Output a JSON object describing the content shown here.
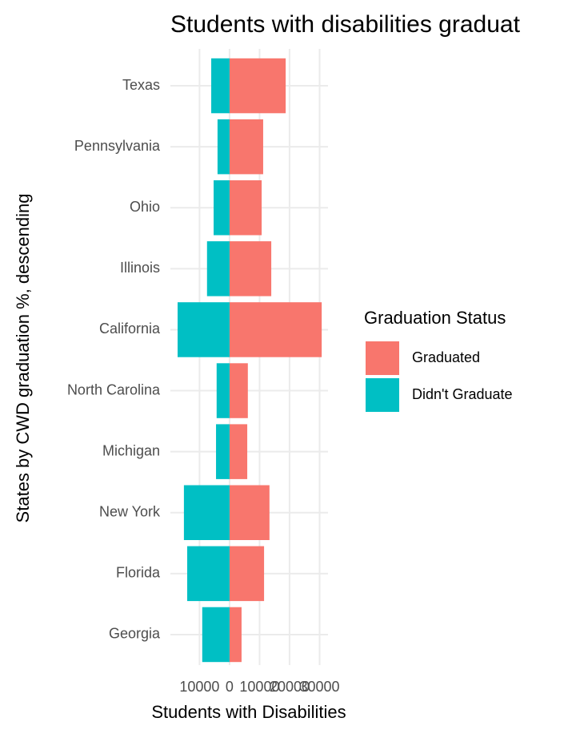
{
  "chart_data": {
    "type": "diverging-bar",
    "title": "Students with disabilities graduat",
    "x_label": "Students with Disabilities",
    "y_label": "States by CWD graduation %, descending",
    "categories": [
      "Texas",
      "Pennsylvania",
      "Ohio",
      "Illinois",
      "California",
      "North Carolina",
      "Michigan",
      "New York",
      "Florida",
      "Georgia"
    ],
    "series": [
      {
        "name": "Graduated",
        "color": "#f8766d",
        "values": [
          18700,
          11200,
          10700,
          13900,
          30700,
          6100,
          5900,
          13300,
          11500,
          4000
        ]
      },
      {
        "name": "Didn't Graduate",
        "color": "#00bfc4",
        "values": [
          -6100,
          -4000,
          -5300,
          -7500,
          -17300,
          -4300,
          -4500,
          -15200,
          -14100,
          -9100
        ]
      }
    ],
    "legend_title": "Graduation Status",
    "xlim": [
      -19700,
      32800
    ],
    "xticks": [
      {
        "value": -10000,
        "label": "10000"
      },
      0,
      10000,
      20000,
      30000
    ],
    "grid": true
  }
}
